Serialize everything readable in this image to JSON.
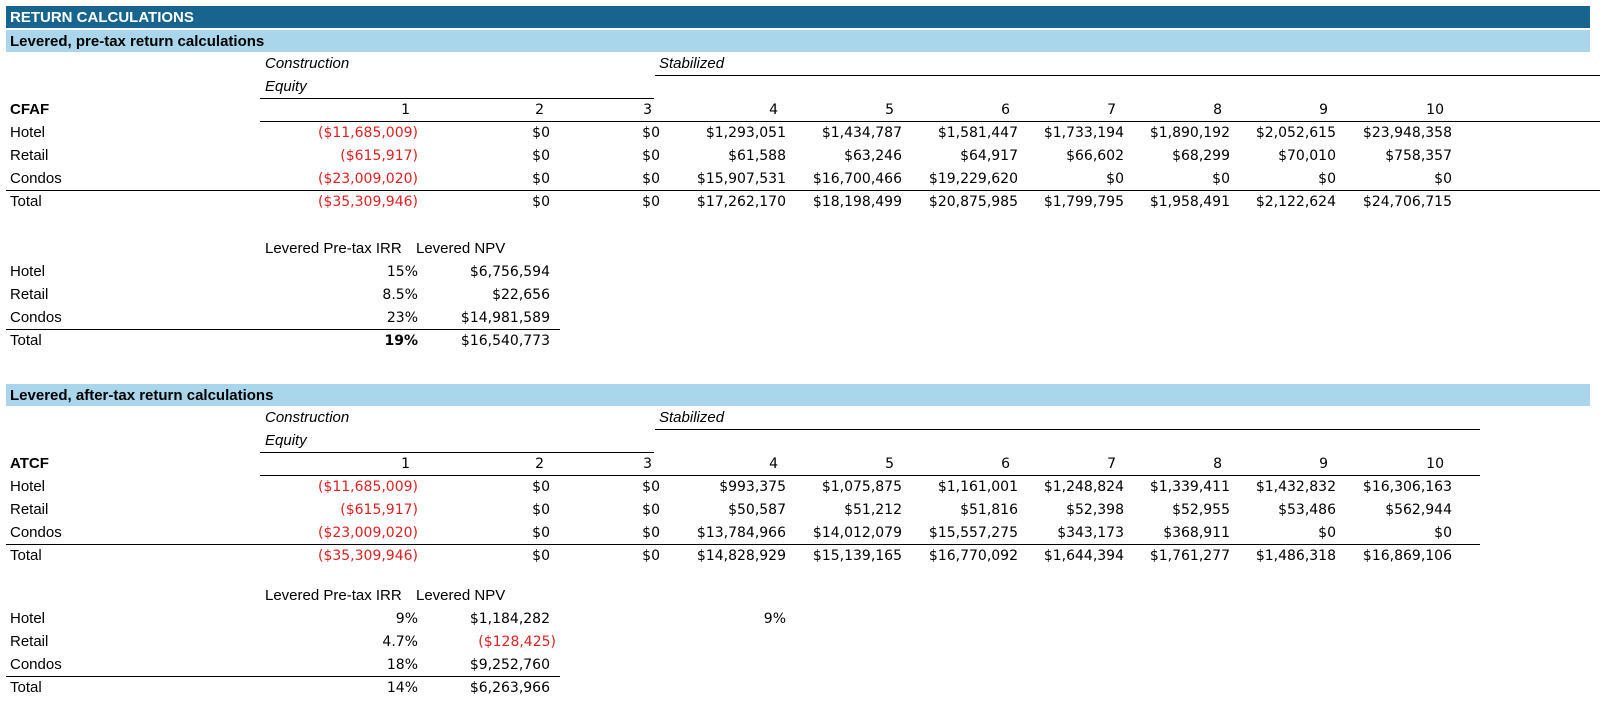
{
  "title": "RETURN CALCULATIONS",
  "colors": {
    "header_dark": "#17658f",
    "header_light": "#a9d6ea",
    "negative": "#e02020"
  },
  "sections": [
    {
      "heading": "Levered, pre-tax return calculations",
      "phase_construction": "Construction",
      "phase_equity": "Equity",
      "phase_stabilized": "Stabilized",
      "row_label": "CFAF",
      "years": [
        "1",
        "2",
        "3",
        "4",
        "5",
        "6",
        "7",
        "8",
        "9",
        "10"
      ],
      "rows": [
        {
          "label": "Hotel",
          "values": [
            "($11,685,009)",
            "$0",
            "$0",
            "$1,293,051",
            "$1,434,787",
            "$1,581,447",
            "$1,733,194",
            "$1,890,192",
            "$2,052,615",
            "$23,948,358"
          ]
        },
        {
          "label": "Retail",
          "values": [
            "($615,917)",
            "$0",
            "$0",
            "$61,588",
            "$63,246",
            "$64,917",
            "$66,602",
            "$68,299",
            "$70,010",
            "$758,357"
          ]
        },
        {
          "label": "Condos",
          "values": [
            "($23,009,020)",
            "$0",
            "$0",
            "$15,907,531",
            "$16,700,466",
            "$19,229,620",
            "$0",
            "$0",
            "$0",
            "$0"
          ]
        },
        {
          "label": "Total",
          "values": [
            "($35,309,946)",
            "$0",
            "$0",
            "$17,262,170",
            "$18,198,499",
            "$20,875,985",
            "$1,799,795",
            "$1,958,491",
            "$2,122,624",
            "$24,706,715"
          ]
        }
      ],
      "summary_irr_header": "Levered Pre-tax IRR",
      "summary_npv_header": "Levered NPV",
      "summary": [
        {
          "label": "Hotel",
          "irr": "15%",
          "npv": "$6,756,594"
        },
        {
          "label": "Retail",
          "irr": "8.5%",
          "npv": "$22,656"
        },
        {
          "label": "Condos",
          "irr": "23%",
          "npv": "$14,981,589"
        },
        {
          "label": "Total",
          "irr": "19%",
          "npv": "$16,540,773"
        }
      ]
    },
    {
      "heading": "Levered, after-tax return calculations",
      "phase_construction": "Construction",
      "phase_equity": "Equity",
      "phase_stabilized": "Stabilized",
      "row_label": "ATCF",
      "years": [
        "1",
        "2",
        "3",
        "4",
        "5",
        "6",
        "7",
        "8",
        "9",
        "10"
      ],
      "rows": [
        {
          "label": "Hotel",
          "values": [
            "($11,685,009)",
            "$0",
            "$0",
            "$993,375",
            "$1,075,875",
            "$1,161,001",
            "$1,248,824",
            "$1,339,411",
            "$1,432,832",
            "$16,306,163"
          ]
        },
        {
          "label": "Retail",
          "values": [
            "($615,917)",
            "$0",
            "$0",
            "$50,587",
            "$51,212",
            "$51,816",
            "$52,398",
            "$52,955",
            "$53,486",
            "$562,944"
          ]
        },
        {
          "label": "Condos",
          "values": [
            "($23,009,020)",
            "$0",
            "$0",
            "$13,784,966",
            "$14,012,079",
            "$15,557,275",
            "$343,173",
            "$368,911",
            "$0",
            "$0"
          ]
        },
        {
          "label": "Total",
          "values": [
            "($35,309,946)",
            "$0",
            "$0",
            "$14,828,929",
            "$15,139,165",
            "$16,770,092",
            "$1,644,394",
            "$1,761,277",
            "$1,486,318",
            "$16,869,106"
          ]
        }
      ],
      "summary_irr_header": "Levered Pre-tax IRR",
      "summary_npv_header": "Levered NPV",
      "summary": [
        {
          "label": "Hotel",
          "irr": "9%",
          "npv": "$1,184,282"
        },
        {
          "label": "Retail",
          "irr": "4.7%",
          "npv": "($128,425)"
        },
        {
          "label": "Condos",
          "irr": "18%",
          "npv": "$9,252,760"
        },
        {
          "label": "Total",
          "irr": "14%",
          "npv": "$6,263,966"
        }
      ],
      "extra_note": "9%"
    }
  ]
}
